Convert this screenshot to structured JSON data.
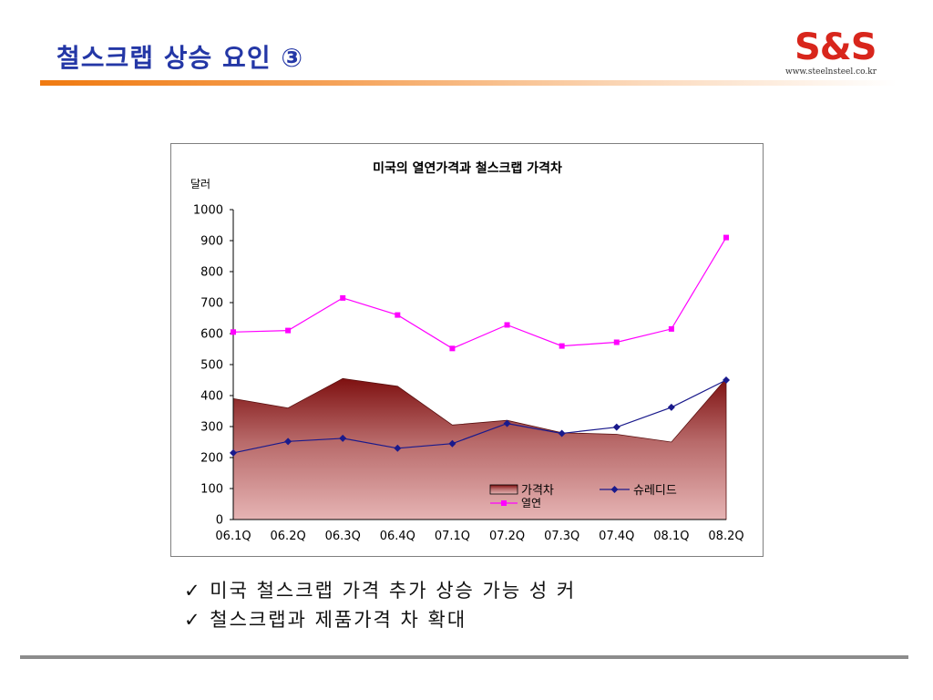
{
  "slide": {
    "title": "철스크랩 상승 요인 ③",
    "logo_text": "S&S",
    "logo_url": "www.steelnsteel.co.kr",
    "bullets": [
      {
        "mark": "✓",
        "text": "미국 철스크랩 가격 추가 상승 가능 성 커"
      },
      {
        "mark": "✓",
        "text": "철스크랩과 제품가격 차 확대"
      }
    ]
  },
  "chart_data": {
    "type": "area",
    "title": "미국의 열연가격과 철스크랩 가격차",
    "ylabel": "달러",
    "xlabel": "",
    "ylim": [
      0,
      1000
    ],
    "yticks": [
      0,
      100,
      200,
      300,
      400,
      500,
      600,
      700,
      800,
      900,
      1000
    ],
    "categories": [
      "06.1Q",
      "06.2Q",
      "06.3Q",
      "06.4Q",
      "07.1Q",
      "07.2Q",
      "07.3Q",
      "07.4Q",
      "08.1Q",
      "08.2Q"
    ],
    "grid": false,
    "legend_position": "bottom-right",
    "series": [
      {
        "name": "가격차",
        "kind": "area",
        "color": "#8b1a1a",
        "values": [
          390,
          360,
          455,
          430,
          305,
          320,
          280,
          275,
          250,
          455
        ]
      },
      {
        "name": "슈레디드",
        "kind": "line",
        "marker": "diamond",
        "color": "#1a1a8c",
        "values": [
          215,
          252,
          262,
          230,
          245,
          310,
          278,
          298,
          362,
          450
        ]
      },
      {
        "name": "열연",
        "kind": "line",
        "marker": "square",
        "color": "#ff00ff",
        "values": [
          605,
          610,
          715,
          660,
          552,
          628,
          560,
          572,
          615,
          910
        ]
      }
    ]
  }
}
